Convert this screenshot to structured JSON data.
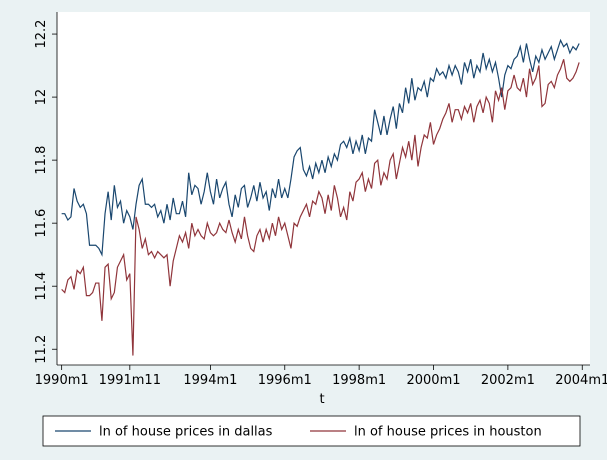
{
  "chart_data": {
    "type": "line",
    "x_label": "t",
    "x": [
      360,
      361,
      362,
      363,
      364,
      365,
      366,
      367,
      368,
      369,
      370,
      371,
      372,
      373,
      374,
      375,
      376,
      377,
      378,
      379,
      380,
      381,
      382,
      383,
      384,
      385,
      386,
      387,
      388,
      389,
      390,
      391,
      392,
      393,
      394,
      395,
      396,
      397,
      398,
      399,
      400,
      401,
      402,
      403,
      404,
      405,
      406,
      407,
      408,
      409,
      410,
      411,
      412,
      413,
      414,
      415,
      416,
      417,
      418,
      419,
      420,
      421,
      422,
      423,
      424,
      425,
      426,
      427,
      428,
      429,
      430,
      431,
      432,
      433,
      434,
      435,
      436,
      437,
      438,
      439,
      440,
      441,
      442,
      443,
      444,
      445,
      446,
      447,
      448,
      449,
      450,
      451,
      452,
      453,
      454,
      455,
      456,
      457,
      458,
      459,
      460,
      461,
      462,
      463,
      464,
      465,
      466,
      467,
      468,
      469,
      470,
      471,
      472,
      473,
      474,
      475,
      476,
      477,
      478,
      479,
      480,
      481,
      482,
      483,
      484,
      485,
      486,
      487,
      488,
      489,
      490,
      491,
      492,
      493,
      494,
      495,
      496,
      497,
      498,
      499,
      500,
      501,
      502,
      503,
      504,
      505,
      506,
      507,
      508,
      509,
      510,
      511,
      512,
      513,
      514,
      515,
      516,
      517,
      518,
      519,
      520,
      521,
      522,
      523,
      524,
      525,
      526,
      527
    ],
    "series": [
      {
        "name": "ln of house prices in dallas",
        "color": "#1a476f",
        "values": [
          11.63,
          11.63,
          11.61,
          11.62,
          11.71,
          11.67,
          11.65,
          11.66,
          11.63,
          11.53,
          11.53,
          11.53,
          11.52,
          11.5,
          11.63,
          11.7,
          11.61,
          11.72,
          11.65,
          11.67,
          11.6,
          11.64,
          11.62,
          11.58,
          11.66,
          11.72,
          11.74,
          11.66,
          11.66,
          11.65,
          11.66,
          11.62,
          11.64,
          11.6,
          11.66,
          11.61,
          11.68,
          11.63,
          11.63,
          11.67,
          11.62,
          11.76,
          11.69,
          11.72,
          11.71,
          11.66,
          11.7,
          11.76,
          11.7,
          11.66,
          11.74,
          11.68,
          11.71,
          11.73,
          11.66,
          11.62,
          11.69,
          11.65,
          11.71,
          11.72,
          11.65,
          11.68,
          11.72,
          11.67,
          11.73,
          11.68,
          11.7,
          11.64,
          11.71,
          11.68,
          11.74,
          11.68,
          11.71,
          11.68,
          11.74,
          11.81,
          11.83,
          11.84,
          11.77,
          11.75,
          11.78,
          11.74,
          11.79,
          11.76,
          11.8,
          11.76,
          11.81,
          11.78,
          11.82,
          11.8,
          11.85,
          11.86,
          11.84,
          11.87,
          11.82,
          11.86,
          11.83,
          11.88,
          11.82,
          11.87,
          11.86,
          11.96,
          11.92,
          11.88,
          11.94,
          11.88,
          11.93,
          11.97,
          11.9,
          11.98,
          11.95,
          12.03,
          11.98,
          12.06,
          11.99,
          12.03,
          12.02,
          12.05,
          12.0,
          12.06,
          12.05,
          12.09,
          12.07,
          12.08,
          12.06,
          12.1,
          12.07,
          12.1,
          12.08,
          12.04,
          12.11,
          12.08,
          12.12,
          12.06,
          12.1,
          12.08,
          12.14,
          12.09,
          12.12,
          12.08,
          12.11,
          12.06,
          12.0,
          12.07,
          12.1,
          12.09,
          12.12,
          12.13,
          12.16,
          12.11,
          12.17,
          12.12,
          12.08,
          12.13,
          12.11,
          12.15,
          12.12,
          12.14,
          12.16,
          12.12,
          12.15,
          12.18,
          12.16,
          12.17,
          12.14,
          12.16,
          12.15,
          12.17
        ]
      },
      {
        "name": "ln of house prices in houston",
        "color": "#90353b",
        "values": [
          11.39,
          11.38,
          11.42,
          11.43,
          11.39,
          11.45,
          11.44,
          11.46,
          11.37,
          11.37,
          11.38,
          11.41,
          11.41,
          11.29,
          11.46,
          11.47,
          11.36,
          11.38,
          11.46,
          11.48,
          11.5,
          11.42,
          11.44,
          11.18,
          11.62,
          11.58,
          11.52,
          11.55,
          11.5,
          11.51,
          11.49,
          11.51,
          11.5,
          11.49,
          11.5,
          11.4,
          11.48,
          11.52,
          11.56,
          11.54,
          11.57,
          11.52,
          11.6,
          11.56,
          11.58,
          11.56,
          11.55,
          11.6,
          11.57,
          11.56,
          11.57,
          11.6,
          11.58,
          11.57,
          11.61,
          11.57,
          11.54,
          11.58,
          11.55,
          11.62,
          11.56,
          11.52,
          11.51,
          11.56,
          11.58,
          11.54,
          11.58,
          11.55,
          11.6,
          11.56,
          11.62,
          11.58,
          11.6,
          11.56,
          11.52,
          11.6,
          11.59,
          11.62,
          11.64,
          11.66,
          11.62,
          11.67,
          11.66,
          11.7,
          11.68,
          11.63,
          11.69,
          11.64,
          11.72,
          11.68,
          11.62,
          11.65,
          11.61,
          11.7,
          11.67,
          11.73,
          11.74,
          11.76,
          11.7,
          11.74,
          11.71,
          11.79,
          11.8,
          11.72,
          11.76,
          11.74,
          11.8,
          11.82,
          11.74,
          11.79,
          11.84,
          11.81,
          11.86,
          11.8,
          11.88,
          11.78,
          11.84,
          11.88,
          11.87,
          11.92,
          11.85,
          11.88,
          11.9,
          11.93,
          11.95,
          11.98,
          11.92,
          11.96,
          11.96,
          11.93,
          11.97,
          11.95,
          11.98,
          11.92,
          11.97,
          11.99,
          11.95,
          12.0,
          11.98,
          11.92,
          12.02,
          11.99,
          12.03,
          11.96,
          12.02,
          12.03,
          12.07,
          12.03,
          12.02,
          12.06,
          12.0,
          12.09,
          12.04,
          12.06,
          12.1,
          11.97,
          11.98,
          12.04,
          12.05,
          12.03,
          12.07,
          12.09,
          12.12,
          12.06,
          12.05,
          12.06,
          12.08,
          12.11
        ]
      }
    ],
    "xlim": [
      358.5,
      530.5
    ],
    "xticks": [
      {
        "value": 360,
        "label": "1990m1"
      },
      {
        "value": 382,
        "label": "1991m11"
      },
      {
        "value": 408,
        "label": "1994m1"
      },
      {
        "value": 432,
        "label": "1996m1"
      },
      {
        "value": 456,
        "label": "1998m1"
      },
      {
        "value": 480,
        "label": "2000m1"
      },
      {
        "value": 504,
        "label": "2002m1"
      },
      {
        "value": 528,
        "label": "2004m1"
      }
    ],
    "ylim": [
      11.15,
      12.27
    ],
    "yticks": [
      11.2,
      11.4,
      11.6,
      11.8,
      12,
      12.2
    ],
    "legend": "bottom"
  }
}
